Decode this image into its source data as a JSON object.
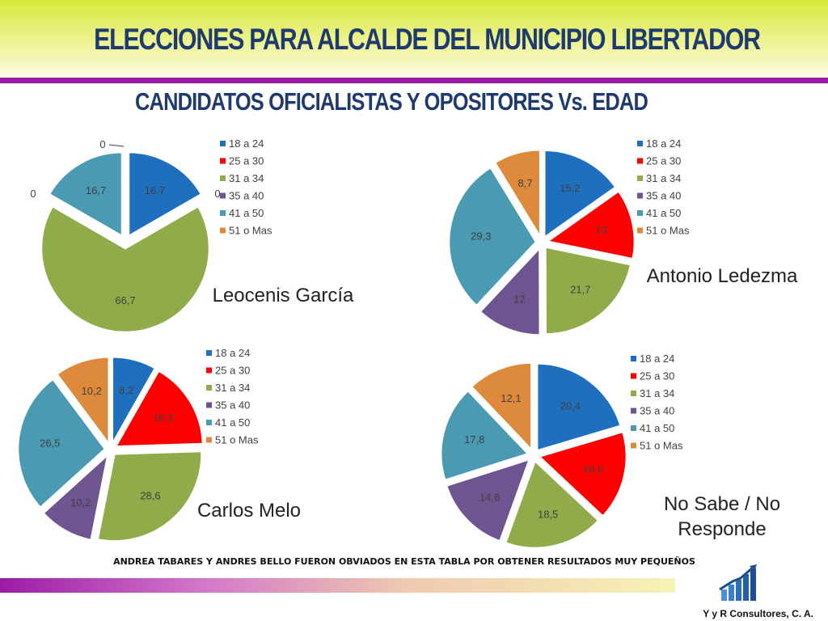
{
  "title": "ELECCIONES PARA ALCALDE DEL MUNICIPIO LIBERTADOR",
  "subtitle": "CANDIDATOS OFICIALISTAS Y OPOSITORES   Vs.  EDAD",
  "footnote": "ANDREA TABARES Y ANDRES BELLO FUERON OBVIADOS EN ESTA TABLA POR OBTENER RESULTADOS MUY PEQUEÑOS",
  "company": "Y y R Consultores, C. A.",
  "colors": {
    "header": "#dde84a",
    "stripe": "#9b1ba6",
    "title": "#1f3a6e",
    "series": [
      "#1f6fbf",
      "#ff0000",
      "#8fab4a",
      "#6e5490",
      "#4a9ab3",
      "#de8a3c"
    ]
  },
  "chart_data": [
    {
      "type": "pie",
      "title": "Leocenis García",
      "categories": [
        "18 a 24",
        "25 a 30",
        "31 a 34",
        "35 a 40",
        "41 a 50",
        "51 o Mas"
      ],
      "values": [
        16.7,
        0,
        66.7,
        0,
        16.7,
        0
      ],
      "value_labels": [
        "16,7",
        "0",
        "66,7",
        "0",
        "16,7",
        "0"
      ],
      "exploded": true,
      "legend": "right"
    },
    {
      "type": "pie",
      "title": "Antonio Ledezma",
      "categories": [
        "18 a 24",
        "25 a 30",
        "31 a 34",
        "35 a 40",
        "41 a 50",
        "51 o Mas"
      ],
      "values": [
        15.2,
        13,
        21.7,
        12,
        29.3,
        8.7
      ],
      "value_labels": [
        "15,2",
        "13",
        "21,7",
        "12",
        "29,3",
        "8,7"
      ],
      "exploded": true,
      "legend": "right"
    },
    {
      "type": "pie",
      "title": "Carlos Melo",
      "categories": [
        "18 a 24",
        "25 a 30",
        "31 a 34",
        "35 a 40",
        "41 a 50",
        "51 o Mas"
      ],
      "values": [
        8.2,
        16.3,
        28.6,
        10.2,
        26.5,
        10.2
      ],
      "value_labels": [
        "8,2",
        "16,3",
        "28,6",
        "10,2",
        "26,5",
        "10,2"
      ],
      "exploded": true,
      "legend": "right"
    },
    {
      "type": "pie",
      "title": "No Sabe / No Responde",
      "categories": [
        "18 a 24",
        "25 a 30",
        "31 a 34",
        "35 a 40",
        "41 a 50",
        "51 o Mas"
      ],
      "values": [
        20.4,
        16.6,
        18.5,
        14.6,
        17.8,
        12.1
      ],
      "value_labels": [
        "20,4",
        "16,6",
        "18,5",
        "14,6",
        "17,8",
        "12,1"
      ],
      "exploded": true,
      "legend": "right"
    }
  ]
}
